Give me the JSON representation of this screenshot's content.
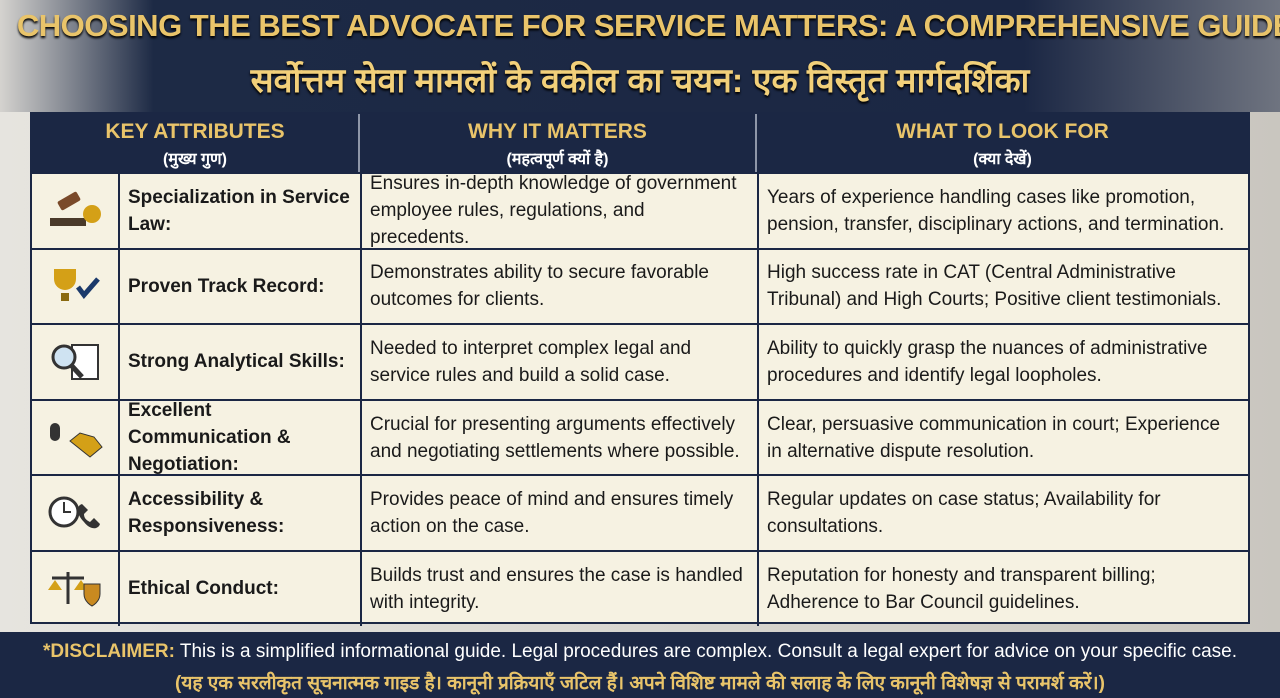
{
  "header": {
    "title": "CHOOSING THE BEST ADVOCATE FOR SERVICE MATTERS: A COMPREHENSIVE GUIDE",
    "subtitle": "सर्वोत्तम सेवा मामलों के वकील का चयन: एक विस्तृत मार्गदर्शिका"
  },
  "table": {
    "columns": [
      {
        "title": "KEY ATTRIBUTES",
        "subtitle": "(मुख्य गुण)"
      },
      {
        "title": "WHY IT MATTERS",
        "subtitle": "(महत्वपूर्ण क्यों है)"
      },
      {
        "title": "WHAT TO LOOK FOR",
        "subtitle": "(क्या देखें)"
      }
    ],
    "rows": [
      {
        "attribute": "Specialization in Service Law:",
        "why": "Ensures in-depth knowledge of government employee rules, regulations, and precedents.",
        "what": "Years of experience handling cases like promotion, pension, transfer, disciplinary actions, and termination."
      },
      {
        "attribute": "Proven Track Record:",
        "why": "Demonstrates ability to secure favorable outcomes for clients.",
        "what": "High success rate in CAT (Central Administrative Tribunal) and High Courts; Positive client testimonials."
      },
      {
        "attribute": "Strong Analytical Skills:",
        "why": "Needed to interpret complex legal and service rules and build a solid case.",
        "what": "Ability to quickly grasp the nuances of administrative procedures and identify legal loopholes."
      },
      {
        "attribute": "Excellent Communication & Negotiation:",
        "why": "Crucial for presenting arguments effectively and negotiating settlements where possible.",
        "what": "Clear, persuasive communication in court; Experience in alternative dispute resolution."
      },
      {
        "attribute": "Accessibility & Responsiveness:",
        "why": "Provides peace of mind and ensures timely action on the case.",
        "what": "Regular updates on case status; Availability for consultations."
      },
      {
        "attribute": "Ethical Conduct:",
        "why": "Builds trust and ensures the case is handled with integrity.",
        "what": "Reputation for honesty and transparent billing; Adherence to Bar Council guidelines."
      }
    ]
  },
  "disclaimer": {
    "label": "*DISCLAIMER:",
    "text": "This is a simplified informational guide. Legal procedures are complex. Consult a legal expert for advice on your specific case.",
    "hindi": "(यह एक सरलीकृत सूचनात्मक गाइड है। कानूनी प्रक्रियाएँ जटिल हैं। अपने विशिष्ट मामले की सलाह के लिए कानूनी विशेषज्ञ से परामर्श करें।)"
  }
}
